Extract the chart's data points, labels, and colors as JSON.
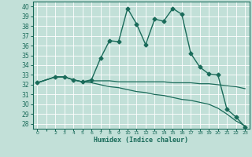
{
  "title": "",
  "xlabel": "Humidex (Indice chaleur)",
  "ylabel": "",
  "xlim": [
    -0.5,
    23.5
  ],
  "ylim": [
    27.5,
    40.5
  ],
  "yticks": [
    28,
    29,
    30,
    31,
    32,
    33,
    34,
    35,
    36,
    37,
    38,
    39,
    40
  ],
  "xticks": [
    0,
    1,
    2,
    3,
    4,
    5,
    6,
    7,
    8,
    9,
    10,
    11,
    12,
    13,
    14,
    15,
    16,
    17,
    18,
    19,
    20,
    21,
    22,
    23
  ],
  "xticklabels": [
    "0",
    "",
    "2",
    "3",
    "4",
    "5",
    "6",
    "7",
    "8",
    "9",
    "10",
    "11",
    "12",
    "13",
    "14",
    "15",
    "16",
    "17",
    "18",
    "19",
    "20",
    "21",
    "22",
    "23"
  ],
  "bg_color": "#c2e0d8",
  "line_color": "#1a6b5a",
  "grid_color": "#ffffff",
  "lines": [
    {
      "x": [
        0,
        2,
        3,
        4,
        5,
        6,
        7,
        8,
        9,
        10,
        11,
        12,
        13,
        14,
        15,
        16,
        17,
        18,
        19,
        20,
        21,
        22,
        23
      ],
      "y": [
        32.2,
        32.8,
        32.8,
        32.5,
        32.3,
        32.5,
        34.7,
        36.5,
        36.4,
        39.8,
        38.2,
        36.1,
        38.7,
        38.5,
        39.8,
        39.2,
        35.2,
        33.8,
        33.1,
        33.0,
        29.5,
        28.7,
        27.7
      ],
      "marker": "D",
      "markersize": 2.5,
      "linewidth": 1.0
    },
    {
      "x": [
        0,
        2,
        3,
        4,
        5,
        6,
        7,
        8,
        9,
        10,
        11,
        12,
        13,
        14,
        15,
        16,
        17,
        18,
        19,
        20,
        21,
        22,
        23
      ],
      "y": [
        32.2,
        32.8,
        32.8,
        32.5,
        32.3,
        32.4,
        32.4,
        32.4,
        32.3,
        32.3,
        32.3,
        32.3,
        32.3,
        32.3,
        32.2,
        32.2,
        32.2,
        32.1,
        32.1,
        32.0,
        31.9,
        31.8,
        31.6
      ],
      "marker": null,
      "markersize": 0,
      "linewidth": 0.9
    },
    {
      "x": [
        0,
        2,
        3,
        4,
        5,
        6,
        7,
        8,
        9,
        10,
        11,
        12,
        13,
        14,
        15,
        16,
        17,
        18,
        19,
        20,
        21,
        22,
        23
      ],
      "y": [
        32.2,
        32.8,
        32.8,
        32.5,
        32.3,
        32.2,
        32.0,
        31.8,
        31.7,
        31.5,
        31.3,
        31.2,
        31.0,
        30.9,
        30.7,
        30.5,
        30.4,
        30.2,
        30.0,
        29.6,
        29.0,
        28.3,
        27.8
      ],
      "marker": null,
      "markersize": 0,
      "linewidth": 0.9
    }
  ]
}
